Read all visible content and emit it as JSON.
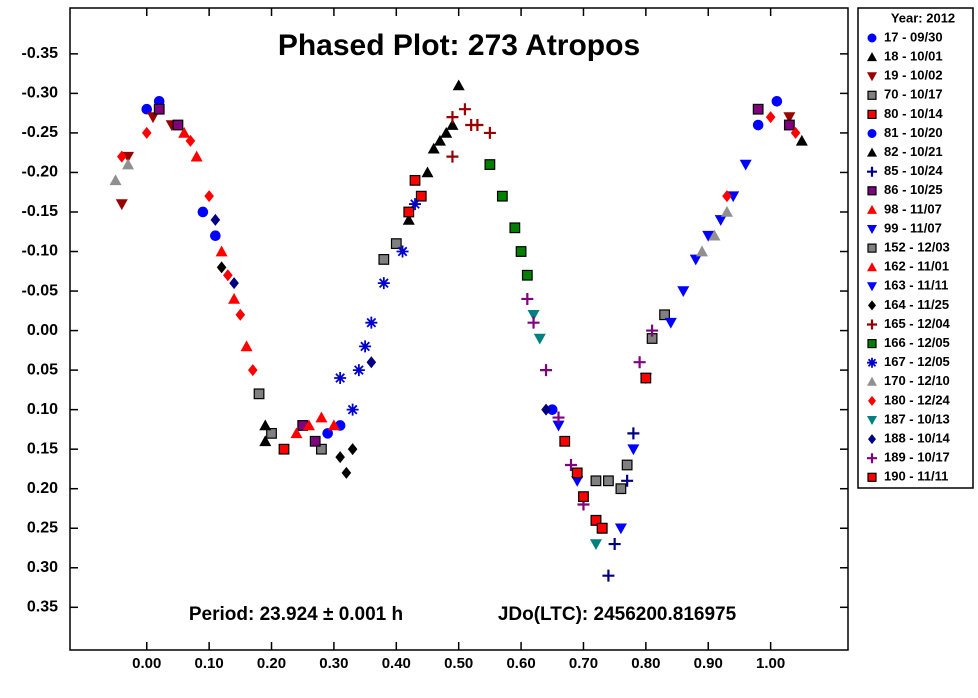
{
  "chart_data": {
    "type": "scatter",
    "title": "Phased Plot: 273 Atropos",
    "annotations": [
      "Period: 23.924 ± 0.001 h",
      "JDo(LTC): 2456200.816975"
    ],
    "legend_title": "Year: 2012",
    "legend": "outside-right",
    "xlim": [
      -0.123,
      1.124
    ],
    "ylim": [
      0.404,
      -0.408
    ],
    "xticks": [
      {
        "value": 0,
        "label": "0.00"
      },
      {
        "value": 0.1,
        "label": "0.10"
      },
      {
        "value": 0.2,
        "label": "0.20"
      },
      {
        "value": 0.3,
        "label": "0.30"
      },
      {
        "value": 0.4,
        "label": "0.40"
      },
      {
        "value": 0.5,
        "label": "0.50"
      },
      {
        "value": 0.6,
        "label": "0.60"
      },
      {
        "value": 0.7,
        "label": "0.70"
      },
      {
        "value": 0.8,
        "label": "0.80"
      },
      {
        "value": 0.9,
        "label": "0.90"
      },
      {
        "value": 1,
        "label": "1.00"
      }
    ],
    "yticks": [
      {
        "value": -0.35,
        "label": "-0.35"
      },
      {
        "value": -0.3,
        "label": "-0.30"
      },
      {
        "value": -0.25,
        "label": "-0.25"
      },
      {
        "value": -0.2,
        "label": "-0.20"
      },
      {
        "value": -0.15,
        "label": "-0.15"
      },
      {
        "value": -0.1,
        "label": "-0.10"
      },
      {
        "value": -0.05,
        "label": "-0.05"
      },
      {
        "value": 0,
        "label": "0.00"
      },
      {
        "value": 0.05,
        "label": "0.05"
      },
      {
        "value": 0.1,
        "label": "0.10"
      },
      {
        "value": 0.15,
        "label": "0.15"
      },
      {
        "value": 0.2,
        "label": "0.20"
      },
      {
        "value": 0.25,
        "label": "0.25"
      },
      {
        "value": 0.3,
        "label": "0.30"
      },
      {
        "value": 0.35,
        "label": "0.35"
      }
    ],
    "series": [
      {
        "name": "17 - 09/30",
        "color": "#0000ff",
        "marker": "circle",
        "x": [
          0.0,
          0.02,
          0.98,
          1.01
        ],
        "values": [
          -0.28,
          -0.29,
          -0.26,
          -0.29
        ]
      },
      {
        "name": "18 - 10/01",
        "color": "#000000",
        "marker": "triangle",
        "x": [
          0.5,
          0.46,
          0.48,
          0.19,
          1.05
        ],
        "values": [
          -0.31,
          -0.23,
          -0.25,
          0.14,
          -0.24
        ]
      },
      {
        "name": "19 - 10/02",
        "color": "#990000",
        "marker": "triangle-down",
        "x": [
          -0.04,
          -0.03,
          0.01,
          0.04,
          1.03
        ],
        "values": [
          -0.16,
          -0.22,
          -0.27,
          -0.26,
          -0.27
        ]
      },
      {
        "name": "70 - 10/17",
        "color": "#808080",
        "marker": "square",
        "x": [
          0.18,
          0.2,
          0.28,
          0.72,
          0.74,
          0.76
        ],
        "values": [
          0.08,
          0.13,
          0.15,
          0.19,
          0.19,
          0.2
        ]
      },
      {
        "name": "80 - 10/14",
        "color": "#ff0000",
        "marker": "square",
        "x": [
          0.43,
          0.44,
          0.22,
          0.72,
          0.73
        ],
        "values": [
          -0.19,
          -0.17,
          0.15,
          0.24,
          0.25
        ]
      },
      {
        "name": "81 - 10/20",
        "color": "#0000ff",
        "marker": "circle",
        "x": [
          0.09,
          0.11,
          0.29,
          0.31,
          0.65
        ],
        "values": [
          -0.15,
          -0.12,
          0.13,
          0.12,
          0.1
        ]
      },
      {
        "name": "82 - 10/21",
        "color": "#000000",
        "marker": "triangle",
        "x": [
          0.42,
          0.45,
          0.47,
          0.49,
          0.19
        ],
        "values": [
          -0.14,
          -0.2,
          -0.24,
          -0.26,
          0.12
        ]
      },
      {
        "name": "85 - 10/24",
        "color": "#000080",
        "marker": "plus",
        "x": [
          0.74,
          0.75,
          0.77,
          0.78
        ],
        "values": [
          0.31,
          0.27,
          0.19,
          0.13
        ]
      },
      {
        "name": "86 - 10/25",
        "color": "#800080",
        "marker": "square",
        "x": [
          0.02,
          0.05,
          0.25,
          0.27,
          0.98,
          1.03
        ],
        "values": [
          -0.28,
          -0.26,
          0.12,
          0.14,
          -0.28,
          -0.26
        ]
      },
      {
        "name": "98 - 11/07",
        "color": "#ff0000",
        "marker": "triangle",
        "x": [
          0.24,
          0.26,
          0.28,
          0.3
        ],
        "values": [
          0.13,
          0.12,
          0.11,
          0.12
        ]
      },
      {
        "name": "99 - 11/07",
        "color": "#0000ff",
        "marker": "triangle-down",
        "x": [
          0.86,
          0.88,
          0.9,
          0.92,
          0.94,
          0.96
        ],
        "values": [
          -0.05,
          -0.09,
          -0.12,
          -0.14,
          -0.17,
          -0.21
        ]
      },
      {
        "name": "152 - 12/03",
        "color": "#808080",
        "marker": "square",
        "x": [
          0.38,
          0.4,
          0.81,
          0.83,
          0.77
        ],
        "values": [
          -0.09,
          -0.11,
          0.01,
          -0.02,
          0.17
        ]
      },
      {
        "name": "162 - 11/01",
        "color": "#ff0000",
        "marker": "triangle",
        "x": [
          0.06,
          0.08,
          0.12,
          0.14,
          0.16
        ],
        "values": [
          -0.25,
          -0.22,
          -0.1,
          -0.04,
          0.02
        ]
      },
      {
        "name": "163 - 11/11",
        "color": "#0000ff",
        "marker": "triangle-down",
        "x": [
          0.66,
          0.69,
          0.76,
          0.78,
          0.8,
          0.84
        ],
        "values": [
          0.12,
          0.19,
          0.25,
          0.15,
          0.06,
          -0.01
        ]
      },
      {
        "name": "164 - 11/25",
        "color": "#000000",
        "marker": "diamond",
        "x": [
          0.31,
          0.32,
          0.33,
          0.12
        ],
        "values": [
          0.16,
          0.18,
          0.15,
          -0.08
        ]
      },
      {
        "name": "165 - 12/04",
        "color": "#990000",
        "marker": "plus",
        "x": [
          0.49,
          0.51,
          0.52,
          0.53,
          0.55,
          0.49
        ],
        "values": [
          -0.27,
          -0.28,
          -0.26,
          -0.26,
          -0.25,
          -0.22
        ]
      },
      {
        "name": "166 - 12/05",
        "color": "#008000",
        "marker": "square",
        "x": [
          0.55,
          0.57,
          0.59,
          0.6,
          0.61
        ],
        "values": [
          -0.21,
          -0.17,
          -0.13,
          -0.1,
          -0.07
        ]
      },
      {
        "name": "167 - 12/05",
        "color": "#0000cc",
        "marker": "asterisk",
        "x": [
          0.33,
          0.34,
          0.35,
          0.36,
          0.38,
          0.41,
          0.43,
          0.31
        ],
        "values": [
          0.1,
          0.05,
          0.02,
          -0.01,
          -0.06,
          -0.1,
          -0.16,
          0.06
        ]
      },
      {
        "name": "170 - 12/10",
        "color": "#909090",
        "marker": "triangle",
        "x": [
          -0.05,
          -0.03,
          0.89,
          0.91,
          0.93
        ],
        "values": [
          -0.19,
          -0.21,
          -0.1,
          -0.12,
          -0.15
        ]
      },
      {
        "name": "180 - 12/24",
        "color": "#ff0000",
        "marker": "diamond",
        "x": [
          -0.04,
          0.0,
          0.07,
          0.1,
          0.13,
          0.15,
          0.17,
          1.0,
          1.04,
          0.93
        ],
        "values": [
          -0.22,
          -0.25,
          -0.24,
          -0.17,
          -0.07,
          -0.02,
          0.05,
          -0.27,
          -0.25,
          -0.17
        ]
      },
      {
        "name": "187 - 10/13",
        "color": "#008080",
        "marker": "triangle-down",
        "x": [
          0.63,
          0.72,
          0.62
        ],
        "values": [
          0.01,
          0.27,
          -0.02
        ]
      },
      {
        "name": "188 - 10/14",
        "color": "#000080",
        "marker": "diamond",
        "x": [
          0.11,
          0.14,
          0.36,
          0.64
        ],
        "values": [
          -0.14,
          -0.06,
          0.04,
          0.1
        ]
      },
      {
        "name": "189 - 10/17",
        "color": "#800080",
        "marker": "plus",
        "x": [
          0.61,
          0.62,
          0.64,
          0.66,
          0.68,
          0.7,
          0.79,
          0.81
        ],
        "values": [
          -0.04,
          -0.01,
          0.05,
          0.11,
          0.17,
          0.22,
          0.04,
          0.0
        ]
      },
      {
        "name": "190 - 11/11",
        "color": "#ff0000",
        "marker": "square",
        "x": [
          0.67,
          0.69,
          0.7,
          0.72,
          0.73,
          0.8,
          0.42
        ],
        "values": [
          0.14,
          0.18,
          0.21,
          0.24,
          0.25,
          0.06,
          -0.15
        ]
      }
    ]
  }
}
